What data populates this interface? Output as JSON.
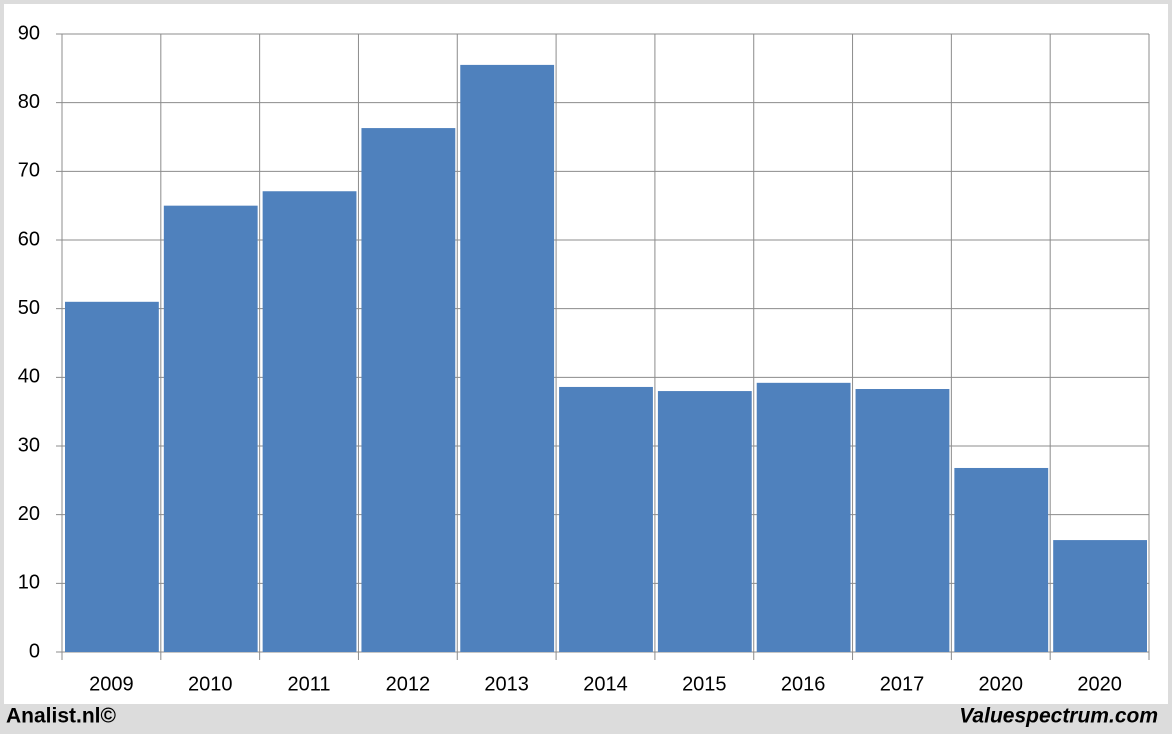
{
  "chart_data": {
    "type": "bar",
    "categories": [
      "2009",
      "2010",
      "2011",
      "2012",
      "2013",
      "2014",
      "2015",
      "2016",
      "2017",
      "2020",
      "2020"
    ],
    "values": [
      51,
      65,
      67.1,
      76.3,
      85.5,
      38.6,
      38.0,
      39.2,
      38.3,
      26.8,
      16.3
    ],
    "color": "#4f81bd",
    "ylim": [
      0,
      90
    ],
    "yticks": [
      0,
      10,
      20,
      30,
      40,
      50,
      60,
      70,
      80,
      90
    ],
    "grid": true
  },
  "footer": {
    "left": "Analist.nl©",
    "right": "Valuespectrum.com"
  }
}
